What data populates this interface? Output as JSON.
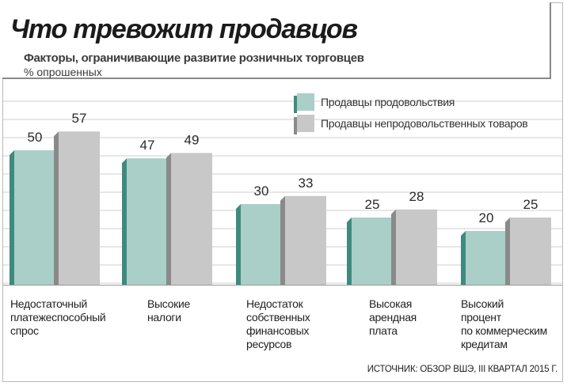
{
  "header": {
    "title": "Что тревожит продавцов",
    "subtitle": "Факторы, ограничивающие развитие розничных торговцев",
    "unit": "% опрошенных"
  },
  "footer": {
    "source": "ИСТОЧНИК: ОБЗОР ВШЭ, III КВАРТАЛ 2015 Г."
  },
  "colors": {
    "food_face": "#a9cfc8",
    "food_side": "#3f8a7e",
    "nonfood_face": "#c8c8c8",
    "nonfood_side": "#8a8a8a",
    "grid": "#cfcfcf"
  },
  "chart_data": {
    "type": "bar",
    "categories": [
      "Недостаточный платежеспособный спрос",
      "Высокие налоги",
      "Недостаток собственных финансовых ресурсов",
      "Высокая арендная плата",
      "Высокий процент по коммерческим кредитам"
    ],
    "category_lines": [
      [
        "Недостаточный",
        "платежеспособный",
        "спрос"
      ],
      [
        "Высокие",
        "налоги"
      ],
      [
        "Недостаток",
        "собственных",
        "финансовых",
        "ресурсов"
      ],
      [
        "Высокая",
        "арендная",
        "плата"
      ],
      [
        "Высокий",
        "процент",
        "по коммерческим",
        "кредитам"
      ]
    ],
    "series": [
      {
        "name": "Продавцы продовольствия",
        "values": [
          50,
          47,
          30,
          25,
          20
        ]
      },
      {
        "name": "Продавцы непродовольственных товаров",
        "values": [
          57,
          49,
          33,
          28,
          25
        ]
      }
    ],
    "ylim": [
      0,
      60
    ],
    "grid": true,
    "legend_position": "top-right"
  }
}
